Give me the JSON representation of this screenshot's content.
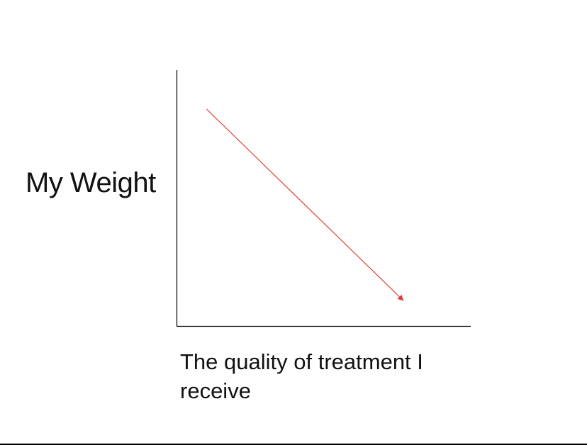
{
  "chart_data": {
    "type": "line",
    "title": "",
    "ylabel": "My Weight",
    "xlabel": "The quality of treatment I receive",
    "grid": false,
    "legend": "none",
    "xlim": [
      0,
      100
    ],
    "ylim": [
      0,
      100
    ],
    "series": [
      {
        "x": [
          10,
          77
        ],
        "y": [
          85,
          10
        ],
        "color": "#e03c31",
        "arrow_at_end": true
      }
    ]
  },
  "colors": {
    "axis": "#000000",
    "trend": "#e03c31",
    "text": "#111111"
  }
}
